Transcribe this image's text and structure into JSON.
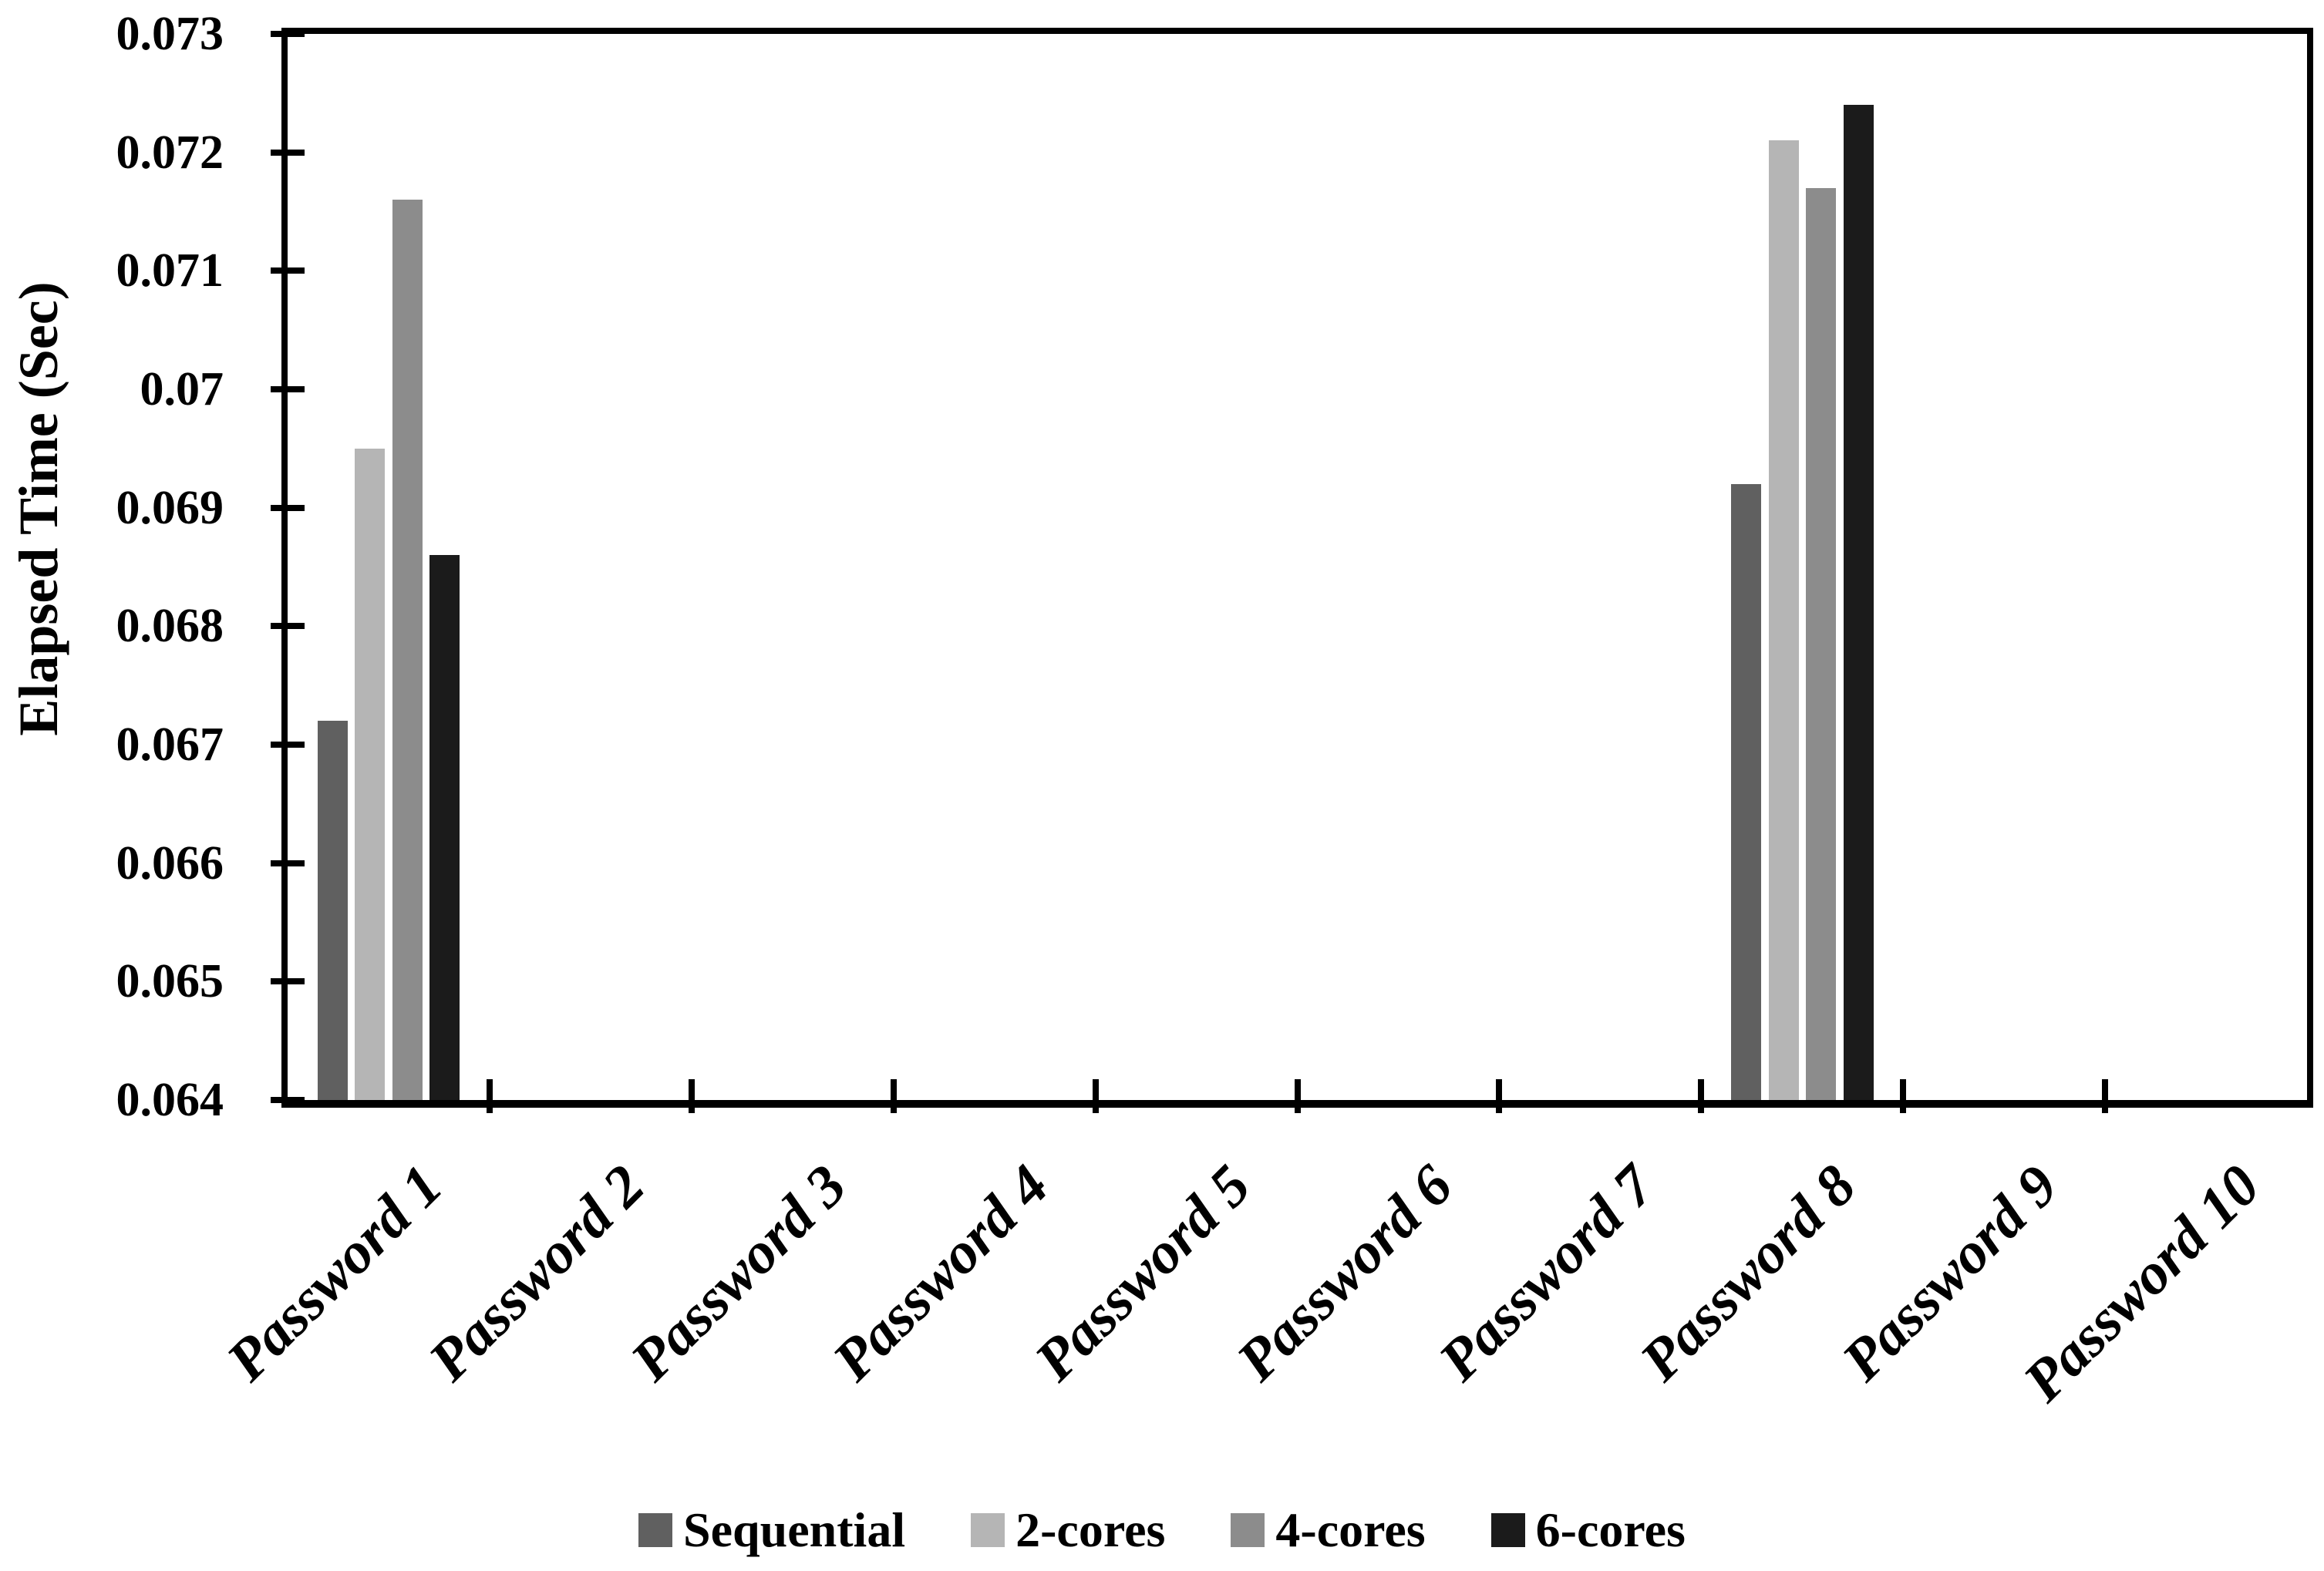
{
  "chart_data": {
    "type": "bar",
    "title": "",
    "xlabel": "",
    "ylabel": "Elapsed Time (Sec)",
    "categories": [
      "Password 1",
      "Password 2",
      "Password 3",
      "Password 4",
      "Password 5",
      "Password 6",
      "Password 7",
      "Password 8",
      "Password 9",
      "Password 10"
    ],
    "series": [
      {
        "name": "Sequential",
        "color": "#606060",
        "values": [
          0.0672,
          null,
          null,
          null,
          null,
          null,
          null,
          0.0692,
          null,
          null
        ]
      },
      {
        "name": "2-cores",
        "color": "#b5b5b5",
        "values": [
          0.0695,
          null,
          null,
          null,
          null,
          null,
          null,
          0.0721,
          null,
          null
        ]
      },
      {
        "name": "4-cores",
        "color": "#8c8c8c",
        "values": [
          0.0716,
          null,
          null,
          null,
          null,
          null,
          null,
          0.0717,
          null,
          null
        ]
      },
      {
        "name": "6-cores",
        "color": "#1b1b1b",
        "values": [
          0.0686,
          null,
          null,
          null,
          null,
          null,
          null,
          0.0724,
          null,
          null
        ]
      }
    ],
    "ylim": [
      0.064,
      0.073
    ],
    "ytick_step": 0.001,
    "ytick_labels": [
      "0.073",
      "0.072",
      "0.071",
      "0.07",
      "0.069",
      "0.068",
      "0.067",
      "0.066",
      "0.065",
      "0.064"
    ],
    "grid": false,
    "legend_position": "bottom",
    "axis_color": "#000000",
    "background_color": "#ffffff"
  }
}
